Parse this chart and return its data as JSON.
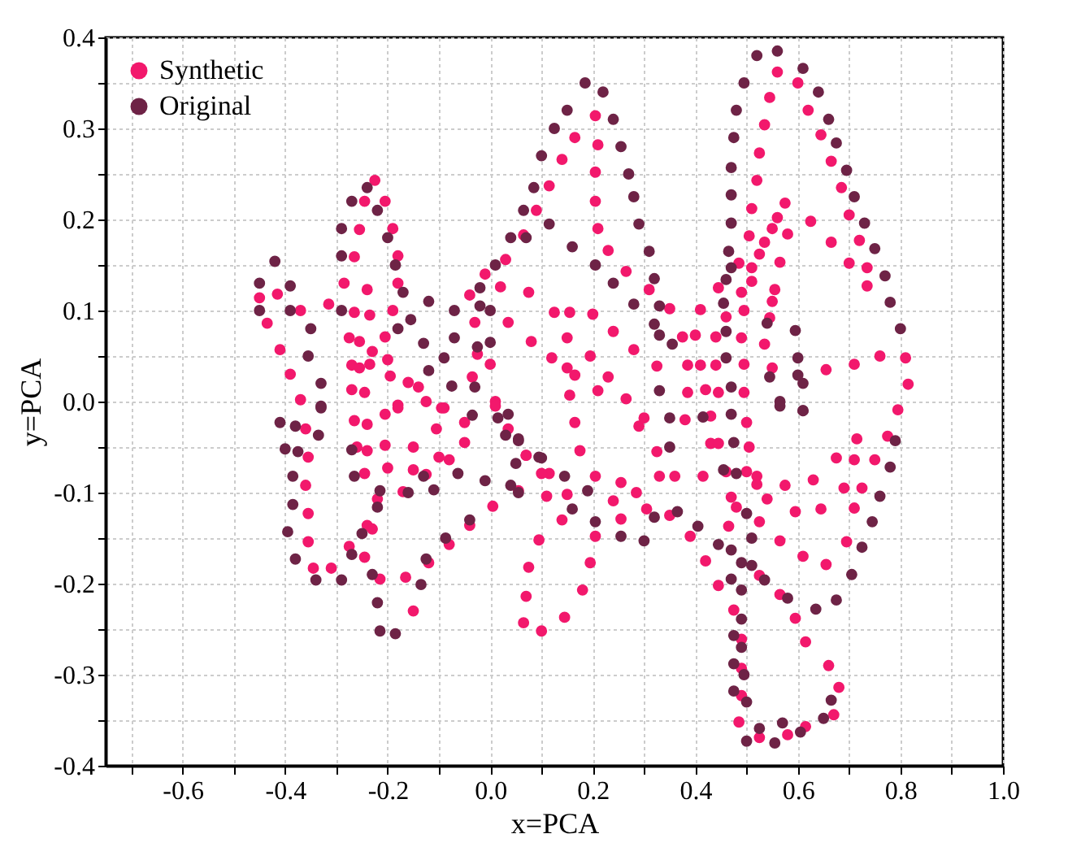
{
  "chart_data": {
    "type": "scatter",
    "xlabel": "x=PCA",
    "ylabel": "y=PCA",
    "xlim": [
      -0.75,
      1.0
    ],
    "ylim": [
      -0.4,
      0.4
    ],
    "xticks": [
      {
        "value": -0.7,
        "label": null
      },
      -0.6,
      {
        "value": -0.5,
        "label": null
      },
      -0.4,
      {
        "value": -0.3,
        "label": null
      },
      -0.2,
      {
        "value": -0.1,
        "label": null
      },
      {
        "value": 0,
        "label": "0.0"
      },
      {
        "value": 0.1,
        "label": null
      },
      0.2,
      {
        "value": 0.3,
        "label": null
      },
      0.4,
      {
        "value": 0.5,
        "label": null
      },
      0.6,
      {
        "value": 0.7,
        "label": null
      },
      0.8,
      {
        "value": 0.9,
        "label": null
      },
      {
        "value": 1,
        "label": "1.0"
      }
    ],
    "yticks": [
      -0.4,
      {
        "value": -0.35,
        "label": null
      },
      -0.3,
      {
        "value": -0.25,
        "label": null
      },
      -0.2,
      {
        "value": -0.15,
        "label": null
      },
      -0.1,
      {
        "value": -0.05,
        "label": null
      },
      {
        "value": 0,
        "label": "0.0"
      },
      {
        "value": 0.05,
        "label": null
      },
      0.1,
      {
        "value": 0.15,
        "label": null
      },
      0.2,
      {
        "value": 0.25,
        "label": null
      },
      0.3,
      {
        "value": 0.35,
        "label": null
      },
      0.4
    ],
    "grid": true,
    "legend": "top left",
    "marker": "circle",
    "series": [
      {
        "name": "Synthetic",
        "color": "#f2186c",
        "x": [
          -0.45,
          -0.435,
          -0.415,
          -0.41,
          -0.39,
          -0.37,
          -0.37,
          -0.315,
          -0.285,
          -0.265,
          -0.255,
          -0.245,
          -0.225,
          -0.205,
          -0.19,
          -0.18,
          -0.18,
          -0.19,
          -0.205,
          -0.23,
          -0.24,
          -0.235,
          -0.265,
          -0.275,
          -0.255,
          -0.27,
          -0.255,
          -0.235,
          -0.27,
          -0.245,
          -0.2,
          -0.195,
          -0.16,
          -0.14,
          -0.125,
          -0.18,
          -0.09,
          -0.04,
          -0.03,
          -0.01,
          0.02,
          0.035,
          0.03,
          0.065,
          0.075,
          0.08,
          0.09,
          -0.025,
          -0.035,
          0.0,
          0.01,
          0.205,
          0.165,
          0.14,
          0.115,
          0.21,
          0.205,
          0.205,
          0.21,
          0.23,
          0.265,
          0.31,
          0.35,
          0.125,
          0.155,
          0.2,
          0.24,
          0.15,
          0.12,
          0.15,
          0.195,
          0.23,
          0.165,
          0.21,
          0.155,
          0.265,
          0.28,
          0.325,
          0.385,
          0.41,
          0.385,
          0.42,
          0.445,
          0.44,
          0.375,
          0.4,
          0.41,
          0.44,
          0.445,
          0.46,
          0.49,
          0.495,
          0.495,
          0.495,
          0.49,
          0.485,
          0.51,
          0.51,
          0.525,
          0.535,
          0.55,
          0.56,
          0.575,
          0.505,
          0.51,
          0.52,
          0.525,
          0.535,
          0.545,
          0.56,
          0.6,
          0.62,
          0.645,
          0.665,
          0.685,
          0.7,
          0.72,
          0.735,
          0.735,
          0.7,
          0.665,
          0.625,
          0.58,
          0.565,
          0.555,
          0.55,
          0.545,
          0.535,
          0.55,
          0.655,
          0.71,
          0.76,
          0.81,
          0.815,
          0.795,
          0.165,
          0.175,
          0.205,
          0.255,
          0.24,
          0.255,
          0.205,
          0.195,
          0.18,
          0.145,
          0.1,
          0.065,
          0.07,
          0.075,
          0.095,
          0.11,
          0.115,
          0.07,
          0.15,
          0.14,
          0.29,
          0.3,
          0.325,
          0.33,
          0.36,
          0.305,
          0.35,
          0.285,
          0.38,
          0.43,
          0.43,
          0.445,
          0.5,
          0.505,
          0.415,
          0.39,
          0.42,
          0.445,
          0.465,
          0.47,
          0.46,
          0.5,
          0.52,
          0.52,
          0.54,
          0.525,
          0.48,
          0.525,
          0.565,
          0.565,
          0.575,
          0.595,
          0.61,
          0.595,
          0.615,
          0.66,
          0.68,
          0.67,
          0.615,
          0.58,
          0.525,
          0.485,
          0.49,
          0.49,
          0.49,
          0.475,
          0.63,
          0.645,
          0.655,
          0.675,
          0.69,
          0.695,
          0.71,
          0.71,
          0.715,
          0.725,
          0.75,
          0.775,
          -0.36,
          -0.355,
          -0.36,
          -0.355,
          -0.355,
          -0.345,
          -0.31,
          -0.275,
          -0.245,
          -0.24,
          -0.23,
          -0.22,
          -0.215,
          -0.165,
          -0.15,
          -0.12,
          -0.265,
          -0.24,
          -0.26,
          -0.24,
          -0.245,
          -0.205,
          -0.205,
          -0.2,
          -0.18,
          -0.17,
          -0.15,
          -0.15,
          -0.125,
          -0.105,
          -0.1,
          -0.08,
          -0.095,
          -0.05,
          -0.05,
          -0.08,
          -0.04,
          0.005,
          0.01,
          0.035,
          0.055,
          0.07,
          0.1
        ],
        "values": [
          0.114,
          0.086,
          0.118,
          0.057,
          0.03,
          0.002,
          0.1,
          0.107,
          0.13,
          0.159,
          0.189,
          0.22,
          0.243,
          0.22,
          0.19,
          0.16,
          0.13,
          0.1,
          0.071,
          0.055,
          0.123,
          0.095,
          0.098,
          0.07,
          0.066,
          0.04,
          0.037,
          0.041,
          0.013,
          0.01,
          0.046,
          0.028,
          0.021,
          0.016,
          0.0,
          -0.004,
          -0.007,
          0.117,
          0.087,
          0.14,
          0.126,
          0.087,
          0.156,
          0.183,
          0.12,
          0.066,
          0.21,
          0.052,
          0.027,
          0.041,
          0.0,
          0.314,
          0.29,
          0.266,
          0.237,
          0.282,
          0.252,
          0.22,
          0.19,
          0.166,
          0.143,
          0.123,
          0.102,
          0.098,
          0.098,
          0.096,
          0.077,
          0.07,
          0.048,
          0.037,
          0.05,
          0.027,
          0.029,
          0.012,
          0.007,
          0.003,
          0.057,
          0.039,
          0.04,
          0.04,
          0.01,
          0.013,
          0.01,
          0.04,
          0.071,
          0.073,
          0.101,
          0.071,
          0.125,
          0.093,
          0.07,
          0.041,
          0.01,
          0.1,
          0.12,
          0.152,
          0.147,
          0.132,
          0.162,
          0.175,
          0.19,
          0.202,
          0.218,
          0.182,
          0.212,
          0.243,
          0.273,
          0.304,
          0.334,
          0.362,
          0.35,
          0.32,
          0.293,
          0.264,
          0.235,
          0.205,
          0.177,
          0.147,
          0.127,
          0.152,
          0.175,
          0.198,
          0.184,
          0.153,
          0.123,
          0.11,
          0.092,
          0.063,
          0.037,
          0.035,
          0.041,
          0.05,
          0.048,
          0.019,
          -0.009,
          -0.023,
          -0.054,
          -0.082,
          -0.089,
          -0.109,
          -0.129,
          -0.148,
          -0.177,
          -0.207,
          -0.237,
          -0.252,
          -0.243,
          -0.214,
          -0.182,
          -0.152,
          -0.104,
          -0.079,
          -0.059,
          -0.102,
          -0.13,
          -0.027,
          -0.018,
          -0.055,
          -0.082,
          -0.082,
          -0.118,
          -0.125,
          -0.1,
          -0.02,
          -0.016,
          -0.046,
          -0.046,
          -0.023,
          -0.05,
          -0.082,
          -0.148,
          -0.175,
          -0.202,
          -0.137,
          -0.105,
          -0.077,
          -0.077,
          -0.082,
          -0.091,
          -0.107,
          -0.132,
          -0.116,
          -0.191,
          -0.212,
          -0.153,
          -0.092,
          -0.121,
          -0.17,
          -0.238,
          -0.264,
          -0.29,
          -0.314,
          -0.344,
          -0.357,
          -0.366,
          -0.369,
          -0.352,
          -0.323,
          -0.293,
          -0.261,
          -0.229,
          -0.086,
          -0.118,
          -0.179,
          -0.062,
          -0.095,
          -0.154,
          -0.064,
          -0.117,
          -0.041,
          -0.095,
          -0.064,
          -0.038,
          -0.03,
          -0.061,
          -0.092,
          -0.123,
          -0.154,
          -0.183,
          -0.183,
          -0.159,
          -0.171,
          -0.136,
          -0.14,
          -0.107,
          -0.195,
          -0.193,
          -0.23,
          -0.177,
          -0.021,
          -0.025,
          -0.05,
          -0.054,
          -0.079,
          -0.014,
          -0.048,
          -0.073,
          -0.007,
          -0.099,
          -0.05,
          -0.075,
          -0.08,
          -0.03,
          -0.061,
          -0.064,
          -0.007,
          -0.023,
          -0.045,
          -0.157,
          -0.136,
          -0.115,
          -0.005,
          -0.03,
          -0.098,
          -0.059,
          -0.079
        ]
      },
      {
        "name": "Original",
        "color": "#6e2346",
        "x": [
          -0.45,
          -0.45,
          -0.42,
          -0.39,
          -0.39,
          -0.35,
          -0.355,
          -0.33,
          -0.33,
          -0.29,
          -0.27,
          -0.24,
          -0.22,
          -0.2,
          -0.185,
          -0.17,
          -0.18,
          -0.155,
          -0.13,
          -0.12,
          -0.12,
          -0.09,
          -0.07,
          -0.07,
          -0.075,
          -0.03,
          -0.025,
          0.0,
          0.0,
          -0.02,
          -0.02,
          0.01,
          0.04,
          0.07,
          0.085,
          0.1,
          -0.29,
          -0.29,
          0.185,
          0.22,
          0.24,
          0.255,
          0.27,
          0.28,
          0.29,
          0.31,
          0.32,
          0.33,
          0.32,
          0.33,
          0.355,
          0.33,
          0.15,
          0.125,
          0.065,
          0.115,
          0.16,
          0.205,
          0.24,
          0.28,
          0.52,
          0.56,
          0.61,
          0.64,
          0.66,
          0.675,
          0.695,
          0.71,
          0.73,
          0.75,
          0.77,
          0.78,
          0.8,
          0.495,
          0.48,
          0.475,
          0.47,
          0.47,
          0.47,
          0.465,
          0.47,
          0.46,
          0.455,
          0.46,
          0.46,
          0.47,
          0.54,
          0.595,
          0.6,
          0.6,
          0.61,
          0.565,
          0.61,
          0.545,
          0.35,
          0.35,
          0.415,
          0.47,
          0.475,
          0.565,
          0.61,
          0.055,
          0.1,
          0.145,
          0.19,
          0.16,
          0.205,
          0.255,
          0.3,
          0.32,
          0.365,
          0.405,
          0.445,
          0.47,
          0.49,
          0.51,
          0.535,
          0.47,
          0.49,
          0.49,
          0.475,
          0.49,
          0.475,
          0.495,
          0.475,
          0.5,
          0.5,
          0.525,
          0.555,
          0.57,
          0.605,
          0.65,
          0.665,
          0.675,
          0.635,
          0.58,
          0.5,
          0.51,
          0.705,
          0.725,
          0.745,
          0.76,
          0.78,
          0.79,
          0.48,
          0.455,
          -0.41,
          -0.38,
          -0.4,
          -0.375,
          -0.385,
          -0.385,
          -0.395,
          -0.38,
          -0.34,
          -0.29,
          -0.335,
          -0.33,
          -0.27,
          -0.265,
          -0.27,
          -0.25,
          -0.23,
          -0.22,
          -0.215,
          -0.185,
          -0.215,
          -0.22,
          -0.135,
          -0.125,
          -0.11,
          -0.16,
          -0.13,
          -0.063,
          -0.01,
          -0.04,
          -0.087,
          -0.035,
          0.015,
          0.035,
          0.03,
          0.055,
          0.05,
          0.04,
          0.055,
          0.095
        ],
        "values": [
          0.13,
          0.1,
          0.154,
          0.127,
          0.1,
          0.08,
          0.05,
          0.02,
          -0.005,
          0.16,
          0.22,
          0.235,
          0.21,
          0.18,
          0.15,
          0.12,
          0.08,
          0.09,
          0.064,
          0.034,
          0.11,
          0.048,
          0.1,
          0.07,
          0.017,
          0.016,
          0.06,
          0.065,
          0.1,
          0.125,
          0.105,
          0.15,
          0.18,
          0.18,
          0.235,
          0.27,
          0.1,
          0.19,
          0.35,
          0.34,
          0.31,
          0.28,
          0.25,
          0.225,
          0.195,
          0.165,
          0.135,
          0.105,
          0.085,
          0.073,
          0.063,
          0.012,
          0.32,
          0.3,
          0.21,
          0.195,
          0.17,
          0.15,
          0.13,
          0.107,
          0.38,
          0.385,
          0.366,
          0.34,
          0.31,
          0.284,
          0.254,
          0.225,
          0.196,
          0.168,
          0.138,
          0.109,
          0.08,
          0.35,
          0.32,
          0.29,
          0.257,
          0.227,
          0.196,
          0.165,
          0.147,
          0.134,
          0.108,
          0.077,
          0.048,
          0.016,
          0.086,
          0.078,
          0.048,
          0.029,
          0.02,
          0.0,
          -0.01,
          0.027,
          -0.018,
          -0.05,
          -0.017,
          -0.014,
          -0.045,
          -0.005,
          -0.01,
          -0.043,
          -0.062,
          -0.082,
          -0.098,
          -0.118,
          -0.132,
          -0.148,
          -0.153,
          -0.127,
          -0.121,
          -0.137,
          -0.157,
          -0.163,
          -0.177,
          -0.18,
          -0.196,
          -0.195,
          -0.207,
          -0.239,
          -0.257,
          -0.27,
          -0.288,
          -0.3,
          -0.318,
          -0.33,
          -0.373,
          -0.359,
          -0.375,
          -0.353,
          -0.363,
          -0.348,
          -0.328,
          -0.218,
          -0.228,
          -0.216,
          -0.123,
          -0.15,
          -0.19,
          -0.16,
          -0.132,
          -0.104,
          -0.072,
          -0.043,
          -0.079,
          -0.075,
          -0.023,
          -0.027,
          -0.052,
          -0.055,
          -0.082,
          -0.113,
          -0.143,
          -0.173,
          -0.196,
          -0.196,
          -0.037,
          -0.007,
          -0.053,
          -0.082,
          -0.168,
          -0.145,
          -0.19,
          -0.221,
          -0.252,
          -0.255,
          -0.098,
          -0.116,
          -0.201,
          -0.173,
          -0.097,
          -0.1,
          -0.082,
          -0.079,
          -0.087,
          -0.13,
          -0.15,
          -0.015,
          -0.018,
          -0.014,
          -0.037,
          -0.041,
          -0.068,
          -0.092,
          -0.1,
          -0.061
        ]
      }
    ]
  }
}
